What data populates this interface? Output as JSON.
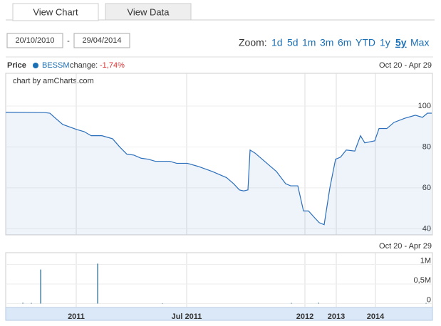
{
  "tabs": [
    "View Chart",
    "View Data"
  ],
  "date_range": {
    "from": "20/10/2010",
    "separator": "-",
    "to": "29/04/2014"
  },
  "zoom": {
    "label": "Zoom:",
    "options": [
      "1d",
      "5d",
      "1m",
      "3m",
      "6m",
      "YTD",
      "1y",
      "5y",
      "Max"
    ],
    "selected": "5y"
  },
  "chart_data": [
    {
      "type": "line",
      "title": "Price",
      "credit": "chart by amCharts.com",
      "period": "Oct 20 - Apr 29",
      "change_label": "change:",
      "change": "-1,74%",
      "xlim": [
        0,
        599
      ],
      "ylim": [
        37,
        116
      ],
      "yticks": [
        40,
        60,
        80,
        100
      ],
      "grid": true,
      "xticks": [
        {
          "value": 99,
          "label": "2011"
        },
        {
          "value": 254,
          "label": "Jul 2011"
        },
        {
          "value": 420,
          "label": "2012"
        },
        {
          "value": 464,
          "label": "2013"
        },
        {
          "value": 519,
          "label": "2014"
        }
      ],
      "series": [
        {
          "name": "BESSM",
          "color": "#2a6ebb",
          "x": [
            0,
            55,
            62,
            70,
            80,
            100,
            110,
            120,
            135,
            150,
            160,
            170,
            180,
            190,
            200,
            210,
            230,
            240,
            255,
            270,
            290,
            310,
            320,
            328,
            334,
            340,
            343,
            350,
            360,
            380,
            393,
            400,
            410,
            418,
            425,
            432,
            440,
            447,
            455,
            463,
            470,
            478,
            490,
            498,
            504,
            518,
            524,
            535,
            545,
            560,
            575,
            585,
            592,
            598
          ],
          "values": [
            97,
            96.8,
            96.5,
            94,
            91,
            88.5,
            87.5,
            85.5,
            85.5,
            84,
            80,
            76.5,
            76,
            74.5,
            74,
            73,
            73,
            72,
            72,
            70.5,
            68,
            65,
            62,
            59,
            58.5,
            59,
            78.5,
            77,
            74,
            68,
            62,
            61,
            61,
            48.7,
            48.7,
            46,
            43,
            42,
            60,
            74,
            75,
            78.5,
            78,
            85.5,
            82,
            83,
            89,
            89,
            92,
            94,
            95.5,
            94.5,
            96.5,
            96.5
          ]
        }
      ]
    },
    {
      "type": "bar",
      "period": "Oct 20 - Apr 29",
      "color": "#1b5f8a",
      "xlim": [
        0,
        599
      ],
      "ylim": [
        -100000,
        1300000
      ],
      "yticks": [
        0,
        {
          "value": 500000,
          "label": "0,5M"
        },
        {
          "value": 1000000,
          "label": "1M"
        }
      ],
      "x": [
        24,
        36,
        49,
        129,
        220,
        401,
        439,
        590
      ],
      "values": [
        20000,
        15000,
        870000,
        1020000,
        10000,
        15000,
        20000,
        15000
      ]
    }
  ]
}
